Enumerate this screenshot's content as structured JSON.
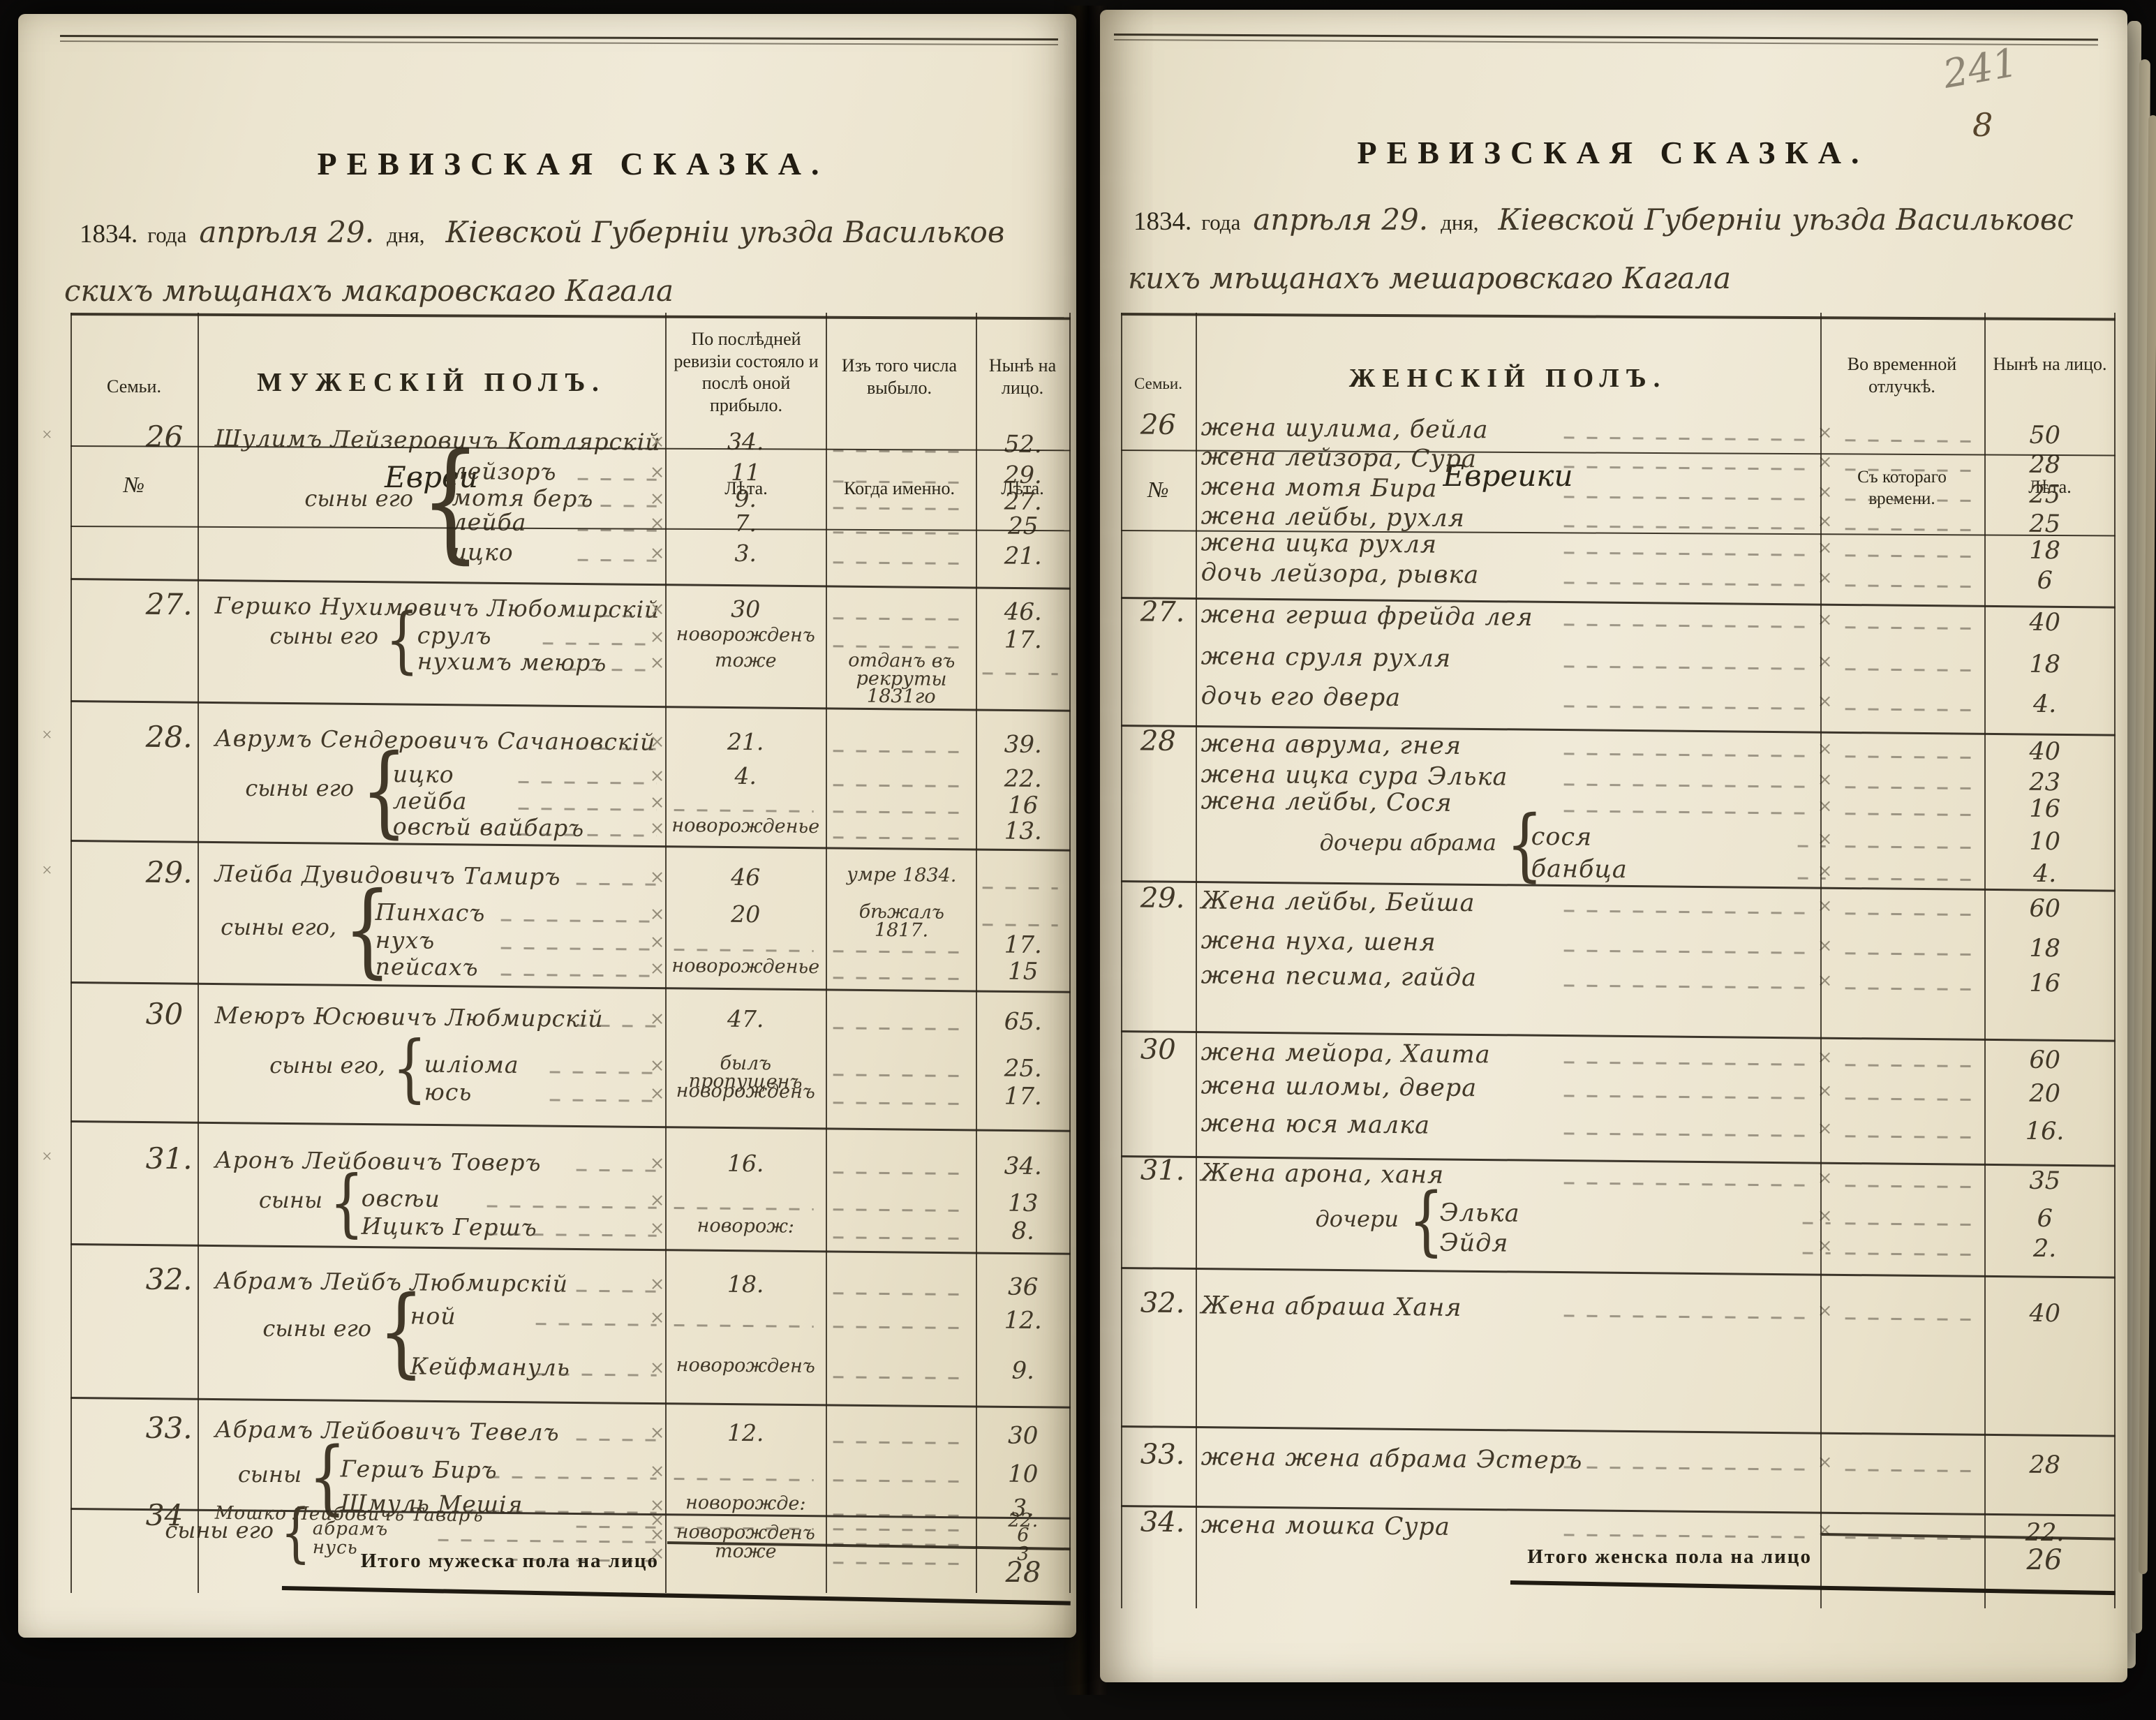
{
  "corner_marks": {
    "pencil_page_number": "241",
    "ink_page_number": "8"
  },
  "icons": {
    "pencil_cross": "×",
    "brace": "{"
  },
  "left_page": {
    "title": "РЕВИЗСКАЯ СКАЗКА.",
    "intro": {
      "year": "1834.",
      "of_year": "года",
      "date": "апрѣля 29.",
      "of_day": "дня,",
      "line1": "Кіевской Губерніи уѣзда Васильков",
      "line2": "скихъ мѣщанахъ макаровскаго Кагала"
    },
    "header": {
      "family": "Семьи.",
      "sex": "МУЖЕСКІЙ ПОЛЪ.",
      "revision": "По послѣдней ревизіи состояло и послѣ оной прибыло.",
      "departed": "Изъ того числа выбыло.",
      "present": "Нынѣ на лицо."
    },
    "subheader": {
      "number": "№",
      "group": "Евреи",
      "years": "Лѣта.",
      "when": "Когда именно.",
      "years2": "Лѣта."
    },
    "families": [
      {
        "no": "26",
        "group": "сыны его",
        "head": {
          "name": "Шулимъ Лейзеровичъ Котлярскій",
          "prev": "34.",
          "when": "",
          "now": "52."
        },
        "members": [
          {
            "name": "лейзоръ",
            "prev": "11",
            "when": "",
            "now": "29."
          },
          {
            "name": "мотя беръ",
            "prev": "9.",
            "when": "",
            "now": "27."
          },
          {
            "name": "лейба",
            "prev": "7.",
            "when": "",
            "now": "25"
          },
          {
            "name": "ицко",
            "prev": "3.",
            "when": "",
            "now": "21."
          }
        ]
      },
      {
        "no": "27.",
        "group": "сыны его",
        "head": {
          "name": "Гершко Нухимовичъ Любомирскій",
          "prev": "30",
          "when": "",
          "now": "46."
        },
        "members": [
          {
            "name": "срулъ",
            "prev": "новорожденъ",
            "when": "",
            "now": "17."
          },
          {
            "name": "нухимъ меюръ",
            "prev": "тоже",
            "when": "отданъ въ рекруты 1831го",
            "now": ""
          }
        ]
      },
      {
        "no": "28.",
        "group": "сыны его",
        "head": {
          "name": "Аврумъ Сендеровичъ Сачановскій",
          "prev": "21.",
          "when": "",
          "now": "39."
        },
        "members": [
          {
            "name": "ицко",
            "prev": "4.",
            "when": "",
            "now": "22."
          },
          {
            "name": "лейба",
            "prev": "",
            "when": "",
            "now": "16"
          },
          {
            "name": "овсѣй вайбаръ",
            "prev": "новорожденье",
            "when": "",
            "now": "13."
          }
        ]
      },
      {
        "no": "29.",
        "group": "сыны его,",
        "head": {
          "name": "Лейба Дувидовичъ Тамиръ",
          "prev": "46",
          "when": "умре 1834.",
          "now": ""
        },
        "members": [
          {
            "name": "Пинхасъ",
            "prev": "20",
            "when": "бѣжалъ 1817.",
            "now": ""
          },
          {
            "name": "нухъ",
            "prev": "",
            "when": "",
            "now": "17."
          },
          {
            "name": "пейсахъ",
            "prev": "новорожденье",
            "when": "",
            "now": "15"
          }
        ]
      },
      {
        "no": "30",
        "group": "сыны его,",
        "head": {
          "name": "Меюръ Юсювичъ Любмирскій",
          "prev": "47.",
          "when": "",
          "now": "65."
        },
        "members": [
          {
            "name": "шліома",
            "prev": "былъ пропущенъ",
            "when": "",
            "now": "25."
          },
          {
            "name": "юсь",
            "prev": "новорожденъ",
            "when": "",
            "now": "17."
          }
        ]
      },
      {
        "no": "31.",
        "group": "сыны",
        "head": {
          "name": "Аронъ Лейбовичъ Товеръ",
          "prev": "16.",
          "when": "",
          "now": "34."
        },
        "members": [
          {
            "name": "овсѣи",
            "prev": "",
            "when": "",
            "now": "13"
          },
          {
            "name": "Ицикъ Гершъ",
            "prev": "новорож:",
            "when": "",
            "now": "8."
          }
        ]
      },
      {
        "no": "32.",
        "group": "сыны его",
        "head": {
          "name": "Абрамъ Лейбъ Любмирскій",
          "prev": "18.",
          "when": "",
          "now": "36"
        },
        "members": [
          {
            "name": "ной",
            "prev": "",
            "when": "",
            "now": "12."
          },
          {
            "name": "Кейфмануль",
            "prev": "новорожденъ",
            "when": "",
            "now": "9."
          }
        ]
      },
      {
        "no": "33.",
        "group": "сыны",
        "head": {
          "name": "Абрамъ Лейбовичъ Тевелъ",
          "prev": "12.",
          "when": "",
          "now": "30"
        },
        "members": [
          {
            "name": "Гершъ Биръ",
            "prev": "",
            "when": "",
            "now": "10"
          },
          {
            "name": "Шмуль Мешія",
            "prev": "новорожде:",
            "when": "",
            "now": "3."
          }
        ]
      },
      {
        "no": "34",
        "group": "сыны его",
        "small": true,
        "head": {
          "name": "Мошко Лейбовичъ Таваръ",
          "prev": "",
          "when": "",
          "now": "22."
        },
        "members": [
          {
            "name": "абрамъ",
            "prev": "новорожденъ",
            "when": "",
            "now": "6"
          },
          {
            "name": "нусь",
            "prev": "тоже",
            "when": "",
            "now": "3"
          }
        ]
      }
    ],
    "total_label": "Итого мужеска пола на лицо",
    "total_value": "28"
  },
  "right_page": {
    "title": "РЕВИЗСКАЯ СКАЗКА.",
    "intro": {
      "year": "1834.",
      "of_year": "года",
      "date": "апрѣля 29.",
      "of_day": "дня,",
      "line1": "Кіевской Губерніи уѣзда Васильковс",
      "line2": "кихъ мѣщанахъ мешаровскаго Кагала"
    },
    "header": {
      "family": "Семьи.",
      "sex": "ЖЕНСКІЙ ПОЛЪ.",
      "absence": "Во временной отлучкѣ.",
      "present": "Нынѣ на лицо."
    },
    "subheader": {
      "number": "№",
      "group": "Евреики",
      "since": "Съ котораго времени.",
      "years": "Лѣта."
    },
    "families": [
      {
        "no": "26",
        "members": [
          {
            "name": "жена шулима, бейла",
            "now": "50"
          },
          {
            "name": "жена лейзора, Сура",
            "now": "28"
          },
          {
            "name": "жена мотя Бира",
            "now": "25"
          },
          {
            "name": "жена лейбы, рухля",
            "now": "25"
          },
          {
            "name": "жена ицка рухля",
            "now": "18"
          },
          {
            "name": "дочь лейзора, рывка",
            "now": "6"
          }
        ]
      },
      {
        "no": "27.",
        "members": [
          {
            "name": "жена герша фрейда лея",
            "now": "40"
          },
          {
            "name": "жена сруля рухля",
            "now": "18"
          },
          {
            "name": "дочь его двера",
            "now": "4."
          }
        ]
      },
      {
        "no": "28",
        "group": {
          "label": "дочери абрама",
          "from": 3
        },
        "members": [
          {
            "name": "жена аврума, гнея",
            "now": "40"
          },
          {
            "name": "жена ицка сура Элька",
            "now": "23"
          },
          {
            "name": "жена лейбы, Сося",
            "now": "16"
          },
          {
            "name": "сося",
            "now": "10"
          },
          {
            "name": "банбца",
            "now": "4."
          }
        ]
      },
      {
        "no": "29.",
        "members": [
          {
            "name": "Жена лейбы, Бейша",
            "now": "60"
          },
          {
            "name": "жена нуха, шеня",
            "now": "18"
          },
          {
            "name": "жена песима, гайда",
            "now": "16"
          }
        ]
      },
      {
        "no": "30",
        "members": [
          {
            "name": "жена мейора, Хаита",
            "now": "60"
          },
          {
            "name": "жена шломы, двера",
            "now": "20"
          },
          {
            "name": "жена юся малка",
            "now": "16."
          }
        ]
      },
      {
        "no": "31.",
        "group": {
          "label": "дочери",
          "from": 1
        },
        "members": [
          {
            "name": "Жена арона, ханя",
            "now": "35"
          },
          {
            "name": "Элька",
            "now": "6"
          },
          {
            "name": "Эйдя",
            "now": "2."
          }
        ]
      },
      {
        "no": "32.",
        "members": [
          {
            "name": "Жена абраша Ханя",
            "now": "40"
          }
        ]
      },
      {
        "no": "33.",
        "members": [
          {
            "name": "жена жена абрама Эстеръ",
            "now": "28"
          }
        ]
      },
      {
        "no": "34.",
        "members": [
          {
            "name": "жена мошка Сура",
            "now": "22."
          }
        ]
      }
    ],
    "total_label": "Итого женска пола на лицо",
    "total_value": "26"
  }
}
